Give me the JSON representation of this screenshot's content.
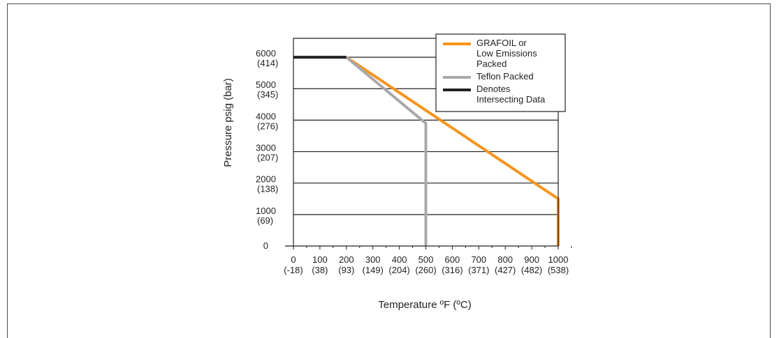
{
  "chart_data": {
    "type": "line",
    "xlabel": "Temperature ºF (ºC)",
    "ylabel": "Pressure psig (bar)",
    "xlim": [
      0,
      1000
    ],
    "ylim": [
      0,
      6600
    ],
    "x_ticks": [
      {
        "value": 0,
        "label": "0",
        "sublabel": "(-18)"
      },
      {
        "value": 100,
        "label": "100",
        "sublabel": "(38)"
      },
      {
        "value": 200,
        "label": "200",
        "sublabel": "(93)"
      },
      {
        "value": 300,
        "label": "300",
        "sublabel": "(149)"
      },
      {
        "value": 400,
        "label": "400",
        "sublabel": "(204)"
      },
      {
        "value": 500,
        "label": "500",
        "sublabel": "(260)"
      },
      {
        "value": 600,
        "label": "600",
        "sublabel": "(316)"
      },
      {
        "value": 700,
        "label": "700",
        "sublabel": "(371)"
      },
      {
        "value": 800,
        "label": "800",
        "sublabel": "(427)"
      },
      {
        "value": 900,
        "label": "900",
        "sublabel": "(482)"
      },
      {
        "value": 1000,
        "label": "1000",
        "sublabel": "(538)"
      }
    ],
    "y_ticks": [
      {
        "value": 0,
        "label": "0",
        "sublabel": ""
      },
      {
        "value": 1000,
        "label": "1000",
        "sublabel": "(69)"
      },
      {
        "value": 2000,
        "label": "2000",
        "sublabel": "(138)"
      },
      {
        "value": 3000,
        "label": "3000",
        "sublabel": "(207)"
      },
      {
        "value": 4000,
        "label": "4000",
        "sublabel": "(276)"
      },
      {
        "value": 5000,
        "label": "5000",
        "sublabel": "(345)"
      },
      {
        "value": 6000,
        "label": "6000",
        "sublabel": "(414)"
      }
    ],
    "grid": "horizontal",
    "legend_position": "top-right",
    "series": [
      {
        "name": "GRAFOIL or Low Emissions Packed",
        "color": "#f7941d",
        "x": [
          200,
          1000,
          1000
        ],
        "y": [
          6000,
          1500,
          0
        ]
      },
      {
        "name": "Teflon Packed",
        "color": "#a7a9ac",
        "x": [
          200,
          500,
          500
        ],
        "y": [
          6000,
          3900,
          0
        ]
      },
      {
        "name": "Denotes Intersecting Data",
        "color": "#231f20",
        "x": [
          0,
          200
        ],
        "y": [
          6000,
          6000
        ]
      }
    ],
    "legend": [
      {
        "lines": [
          "GRAFOIL or",
          "Low Emissions",
          "Packed"
        ],
        "color": "#f7941d"
      },
      {
        "lines": [
          "Teflon Packed"
        ],
        "color": "#a7a9ac"
      },
      {
        "lines": [
          "Denotes",
          "Intersecting Data"
        ],
        "color": "#231f20"
      }
    ]
  }
}
